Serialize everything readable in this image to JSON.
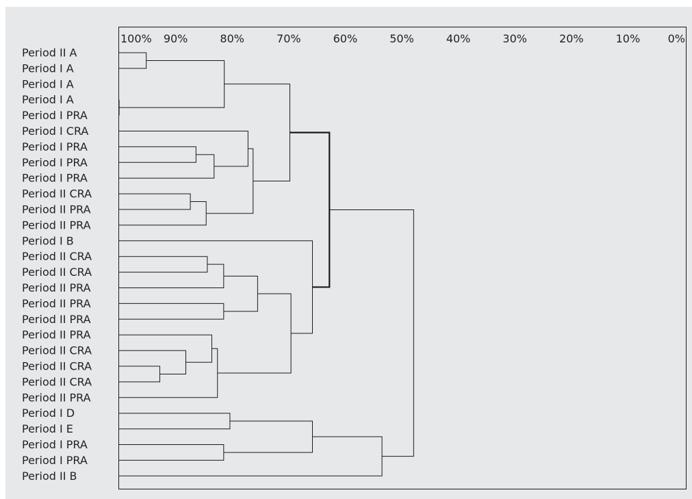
{
  "colors": {
    "background": "#e7e8e9",
    "line": "#1a1a1a",
    "text": "#222222"
  },
  "chart_data": {
    "type": "dendrogram",
    "axis": {
      "tick_labels": [
        "100%",
        "90%",
        "80%",
        "70%",
        "60%",
        "50%",
        "40%",
        "30%",
        "20%",
        "10%",
        "0%"
      ],
      "range": [
        100,
        0
      ],
      "grid": false
    },
    "leaves": [
      "Period II A",
      "Period I A",
      "Period I A",
      "Period I A",
      "Period I PRA",
      "Period I CRA",
      "Period I PRA",
      "Period I PRA",
      "Period I PRA",
      "Period II CRA",
      "Period II PRA",
      "Period II PRA",
      "Period I B",
      "Period II CRA",
      "Period II CRA",
      "Period II PRA",
      "Period II PRA",
      "Period II PRA",
      "Period II PRA",
      "Period II CRA",
      "Period II CRA",
      "Period II CRA",
      "Period II PRA",
      "Period I D",
      "Period I E",
      "Period I PRA",
      "Period I PRA",
      "Period II B"
    ],
    "merges": [
      {
        "id": "c1",
        "children": [
          "L0",
          "L1"
        ],
        "similarity": 95.2
      },
      {
        "id": "c2",
        "children": [
          "L3",
          "L4"
        ],
        "similarity": 100
      },
      {
        "id": "c3",
        "children": [
          "c1",
          "c2"
        ],
        "similarity": 81.4
      },
      {
        "id": "c4",
        "children": [
          "L6",
          "L7"
        ],
        "similarity": 86.4
      },
      {
        "id": "c5",
        "children": [
          "c4",
          "L8"
        ],
        "similarity": 83.2
      },
      {
        "id": "c6",
        "children": [
          "L5",
          "c5"
        ],
        "similarity": 77.2
      },
      {
        "id": "c7",
        "children": [
          "L9",
          "L10"
        ],
        "similarity": 87.4
      },
      {
        "id": "c8",
        "children": [
          "c7",
          "L11"
        ],
        "similarity": 84.6
      },
      {
        "id": "c9",
        "children": [
          "c6",
          "c8"
        ],
        "similarity": 76.3
      },
      {
        "id": "c10",
        "children": [
          "c3",
          "c9"
        ],
        "similarity": 69.8
      },
      {
        "id": "c11",
        "children": [
          "L13",
          "L14"
        ],
        "similarity": 84.4
      },
      {
        "id": "c12",
        "children": [
          "c11",
          "L15"
        ],
        "similarity": 81.5
      },
      {
        "id": "c13",
        "children": [
          "L16",
          "L17"
        ],
        "similarity": 81.5
      },
      {
        "id": "c14",
        "children": [
          "c12",
          "c13"
        ],
        "similarity": 75.5
      },
      {
        "id": "c15",
        "children": [
          "L20",
          "L21"
        ],
        "similarity": 92.8
      },
      {
        "id": "c16",
        "children": [
          "L19",
          "c15"
        ],
        "similarity": 88.2
      },
      {
        "id": "c17",
        "children": [
          "L18",
          "c16"
        ],
        "similarity": 83.6
      },
      {
        "id": "c18",
        "children": [
          "c17",
          "L22"
        ],
        "similarity": 82.6
      },
      {
        "id": "c19",
        "children": [
          "c14",
          "c18"
        ],
        "similarity": 69.6
      },
      {
        "id": "c20",
        "children": [
          "L12",
          "c19"
        ],
        "similarity": 65.8
      },
      {
        "id": "c21",
        "children": [
          "c10",
          "c20"
        ],
        "similarity": 62.8
      },
      {
        "id": "c22",
        "children": [
          "L23",
          "L24"
        ],
        "similarity": 80.4
      },
      {
        "id": "c23",
        "children": [
          "L25",
          "L26"
        ],
        "similarity": 81.5
      },
      {
        "id": "c24",
        "children": [
          "c22",
          "c23"
        ],
        "similarity": 65.8
      },
      {
        "id": "c25",
        "children": [
          "c24",
          "L27"
        ],
        "similarity": 53.5
      },
      {
        "id": "c26",
        "children": [
          "c21",
          "c25"
        ],
        "similarity": 47.9
      }
    ],
    "heavy_link": "c21"
  }
}
